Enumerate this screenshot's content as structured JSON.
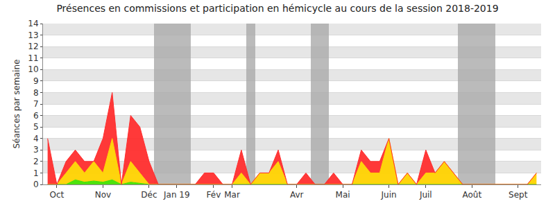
{
  "chart_data": {
    "type": "area",
    "title": "Présences en commissions et participation en hémicycle au cours de la session 2018-2019",
    "y_label": "Séances par semaine",
    "stacked": true,
    "grid": true,
    "categories": [
      null,
      "Oct",
      null,
      null,
      null,
      null,
      "Nov",
      null,
      null,
      null,
      null,
      "Déc",
      null,
      null,
      "Jan 19",
      null,
      null,
      null,
      "Fév",
      null,
      "Mar",
      null,
      null,
      null,
      null,
      null,
      null,
      "Avr",
      null,
      null,
      null,
      null,
      "Mai",
      null,
      null,
      null,
      null,
      "Juin",
      null,
      null,
      null,
      "Juil",
      null,
      null,
      null,
      null,
      "Août",
      null,
      null,
      null,
      null,
      "Sept",
      null,
      null
    ],
    "series": [
      {
        "type": "bar",
        "color": "#aaaaaa",
        "values": [
          null,
          null,
          null,
          null,
          null,
          null,
          null,
          null,
          null,
          null,
          null,
          null,
          14,
          14,
          14,
          14,
          null,
          null,
          null,
          null,
          null,
          null,
          14,
          null,
          null,
          null,
          null,
          null,
          null,
          14,
          14,
          null,
          null,
          null,
          null,
          null,
          null,
          null,
          null,
          null,
          null,
          null,
          null,
          null,
          null,
          14,
          14,
          14,
          14,
          null,
          null,
          null,
          null,
          null
        ]
      },
      {
        "type": "area",
        "color": "#43e000",
        "values": [
          0,
          0,
          0,
          0.4,
          0.2,
          0.3,
          0.2,
          0.4,
          0,
          0.2,
          0.1,
          0,
          0,
          0,
          0,
          0,
          0,
          0,
          0,
          0,
          0,
          0,
          0,
          0,
          0,
          0,
          0,
          0,
          0,
          0,
          0,
          0,
          0,
          0,
          0,
          0,
          0,
          0,
          0,
          0,
          0,
          0,
          0,
          0,
          0,
          0,
          0,
          0,
          0,
          0,
          0,
          0,
          0,
          0
        ]
      },
      {
        "type": "area",
        "color": "#ffd200",
        "values": [
          0,
          0,
          1,
          1.6,
          0.8,
          1.7,
          0.8,
          3.6,
          0,
          1.8,
          0.9,
          0,
          0,
          0,
          0,
          0,
          0,
          0,
          0,
          0,
          0,
          1,
          0,
          1,
          1,
          2,
          0,
          0,
          0,
          0,
          0,
          0,
          0,
          0,
          2,
          1,
          1,
          4,
          0,
          1,
          0,
          1,
          1,
          2,
          1,
          0,
          0,
          0,
          0,
          0,
          0,
          0,
          0,
          1
        ]
      },
      {
        "type": "area",
        "color": "#ff2e2e",
        "values": [
          4,
          0,
          1,
          1,
          1,
          0,
          3,
          4,
          0,
          4,
          4,
          2,
          0,
          0,
          0,
          0,
          0,
          1,
          1,
          0,
          0,
          2,
          0,
          0,
          0,
          1,
          0,
          0,
          1,
          0,
          0,
          1,
          0,
          0,
          1,
          1,
          1,
          0,
          0,
          0,
          0,
          2,
          0,
          0,
          0,
          0,
          0,
          0,
          0,
          0,
          0,
          0,
          0,
          0
        ]
      }
    ],
    "ylim": [
      0,
      14
    ],
    "yticks": [
      0,
      1,
      2,
      3,
      4,
      5,
      6,
      7,
      8,
      9,
      10,
      11,
      12,
      13,
      14
    ]
  }
}
